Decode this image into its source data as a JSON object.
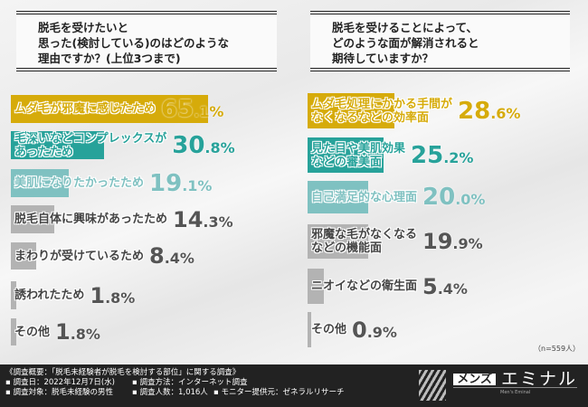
{
  "left": {
    "question": [
      "脱毛を受けたいと",
      "思った(検討している)のはどのような",
      "理由ですか？(上位3つまで)"
    ],
    "items": [
      {
        "label": [
          "ムダ毛が邪魔に感じたため"
        ],
        "int": "65",
        "dec": ".1%",
        "value": 65.1,
        "color": "#d6ab0a"
      },
      {
        "label": [
          "毛深いなどコンプレックスが",
          "あったため"
        ],
        "int": "30",
        "dec": ".8%",
        "value": 30.8,
        "color": "#27a29a"
      },
      {
        "label": [
          "美肌になりたかったため"
        ],
        "int": "19",
        "dec": ".1%",
        "value": 19.1,
        "color": "#7fc1c1"
      },
      {
        "label": [
          "脱毛自体に興味があったため"
        ],
        "int": "14",
        "dec": ".3%",
        "value": 14.3,
        "color": "#b3b3b3"
      },
      {
        "label": [
          "まわりが受けているため"
        ],
        "int": "8",
        "dec": ".4%",
        "value": 8.4,
        "color": "#b3b3b3"
      },
      {
        "label": [
          "誘われたため"
        ],
        "int": "1",
        "dec": ".8%",
        "value": 1.8,
        "color": "#b3b3b3"
      },
      {
        "label": [
          "その他"
        ],
        "int": "1",
        "dec": ".8%",
        "value": 1.8,
        "color": "#b3b3b3"
      }
    ]
  },
  "right": {
    "question": [
      "脱毛を受けることによって、",
      "どのような面が解消されると",
      "期待していますか？"
    ],
    "items": [
      {
        "label": [
          "ムダ毛処理にかかる手間が",
          "なくなるなどの効率面"
        ],
        "int": "28",
        "dec": ".6%",
        "value": 28.6,
        "color": "#d6ab0a"
      },
      {
        "label": [
          "見た目や美肌効果",
          "などの審美面"
        ],
        "int": "25",
        "dec": ".2%",
        "value": 25.2,
        "color": "#27a29a"
      },
      {
        "label": [
          "自己満足的な心理面"
        ],
        "int": "20",
        "dec": ".0%",
        "value": 20.0,
        "color": "#7fc1c1"
      },
      {
        "label": [
          "邪魔な毛がなくなる",
          "などの機能面"
        ],
        "int": "19",
        "dec": ".9%",
        "value": 19.9,
        "color": "#b3b3b3"
      },
      {
        "label": [
          "ニオイなどの衛生面"
        ],
        "int": "5",
        "dec": ".4%",
        "value": 5.4,
        "color": "#b3b3b3"
      },
      {
        "label": [
          "その他"
        ],
        "int": "0",
        "dec": ".9%",
        "value": 0.9,
        "color": "#b3b3b3"
      }
    ],
    "n": "（n=559人）"
  },
  "footer": {
    "title": "《調査概要：「脱毛未経験者が脱毛を検討する部位」に関する調査》",
    "date": "▪ 調査日：2022年12月7日(水)",
    "method": "▪ 調査方法：インターネット調査",
    "target": "▪ 調査対象：脱毛未経験の男性",
    "count": "▪ 調査人数：1,016人",
    "provider": "▪ モニター提供元：ゼネラルリサーチ"
  },
  "logo": {
    "mens": "メンズ",
    "name": "エミナル",
    "sub": "Men's Eminal"
  }
}
